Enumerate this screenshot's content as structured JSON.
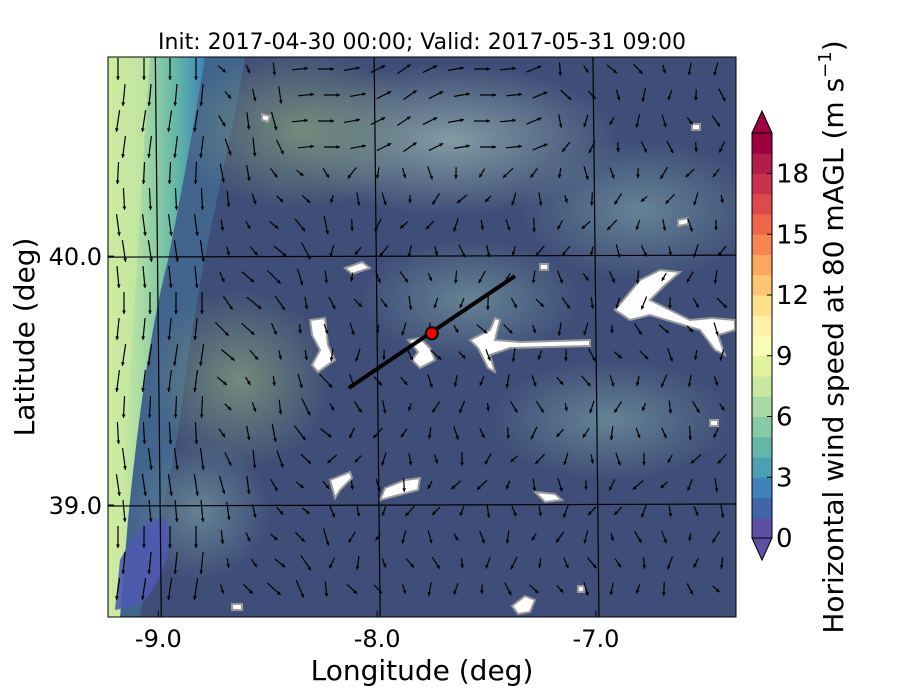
{
  "chart_data": {
    "type": "heatmap",
    "title": "Init: 2017-04-30 00:00; Valid: 2017-05-31 09:00",
    "xlabel": "Longitude (deg)",
    "ylabel": "Latitude (deg)",
    "xlim": [
      -9.23,
      -6.36
    ],
    "ylim": [
      38.55,
      40.8
    ],
    "x_ticks": [
      {
        "value": -9.0,
        "label": "-9.0"
      },
      {
        "value": -8.0,
        "label": "-8.0"
      },
      {
        "value": -7.0,
        "label": "-7.0"
      }
    ],
    "y_ticks": [
      {
        "value": 40.0,
        "label": "40.0"
      },
      {
        "value": 39.0,
        "label": "39.0"
      }
    ],
    "grid": true,
    "colorbar": {
      "label": "Horizontal wind speed at 80 mAGL (m s",
      "label_exponent": "−1",
      "label_close": ")",
      "min": 0,
      "max": 20,
      "step": 1,
      "extend": "both",
      "ticks": [
        {
          "value": 0,
          "label": "0"
        },
        {
          "value": 3,
          "label": "3"
        },
        {
          "value": 6,
          "label": "6"
        },
        {
          "value": 9,
          "label": "9"
        },
        {
          "value": 12,
          "label": "12"
        },
        {
          "value": 15,
          "label": "15"
        },
        {
          "value": 18,
          "label": "18"
        }
      ],
      "colors": [
        "#5e4fa2",
        "#4065a8",
        "#3e84b9",
        "#4ba0b1",
        "#63b7a8",
        "#86cba4",
        "#a7daa4",
        "#c8e8a0",
        "#e2f39c",
        "#f8fcb4",
        "#fff1a8",
        "#fee08b",
        "#fdc572",
        "#fca65e",
        "#f88650",
        "#ee6847",
        "#dd4a4b",
        "#c9324c",
        "#b01e4c",
        "#9e0142"
      ]
    },
    "cross_section": {
      "start": {
        "lon": -8.13,
        "lat": 39.47
      },
      "end": {
        "lon": -7.37,
        "lat": 39.92
      }
    },
    "marker": {
      "lon": -7.75,
      "lat": 39.69,
      "color": "#ff0000"
    }
  }
}
